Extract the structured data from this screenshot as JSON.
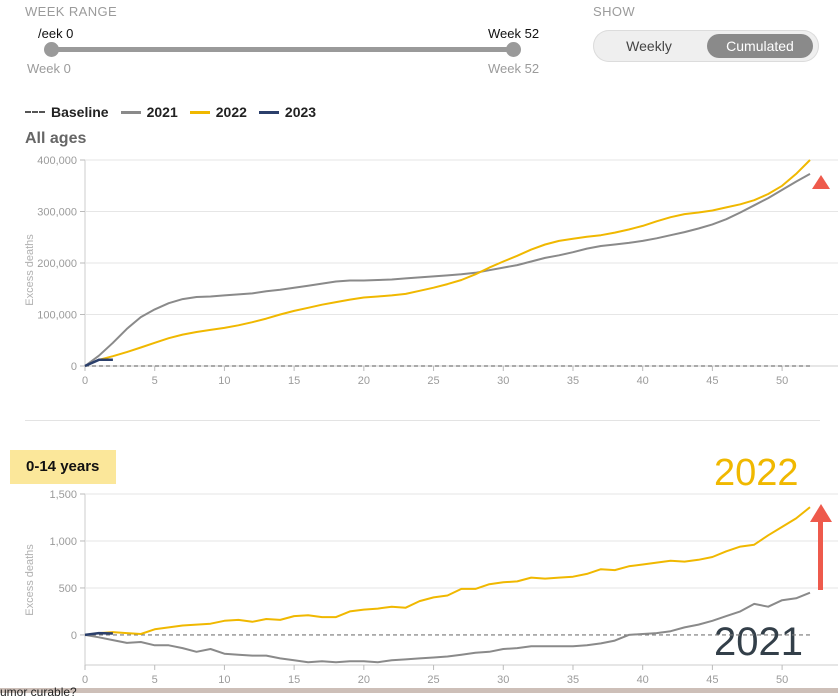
{
  "controls": {
    "week_range_label": "WEEK RANGE",
    "slider_left_value": "/eek 0",
    "slider_right_value": "Week 52",
    "slider_left_sub": "Week 0",
    "slider_right_sub": "Week 52",
    "range": [
      0,
      52
    ],
    "show_label": "SHOW",
    "toggle": {
      "options": [
        "Weekly",
        "Cumulated"
      ],
      "selected": "Cumulated"
    }
  },
  "legend": [
    {
      "name": "Baseline",
      "style": "dashed",
      "color": "#555555"
    },
    {
      "name": "2021",
      "color": "#8a8a8a"
    },
    {
      "name": "2022",
      "color": "#f0b800"
    },
    {
      "name": "2023",
      "color": "#2b3f6b"
    }
  ],
  "annotations": {
    "big_2022": "2022",
    "big_2021": "2021",
    "arrow_color": "#ee5a4c",
    "bottom_text": "umor curable?"
  },
  "chart_data": [
    {
      "type": "line",
      "title": "All ages",
      "ylabel": "Excess deaths",
      "xlim": [
        0,
        52
      ],
      "ylim": [
        0,
        400000
      ],
      "xticks": [
        0,
        5,
        10,
        15,
        20,
        25,
        30,
        35,
        40,
        45,
        50
      ],
      "yticks": [
        0,
        100000,
        200000,
        300000,
        400000
      ],
      "ytick_labels": [
        "0",
        "100,000",
        "200,000",
        "300,000",
        "400,000"
      ],
      "grid": true,
      "baseline": 0,
      "series": [
        {
          "name": "2021",
          "color": "#8a8a8a",
          "x": [
            0,
            1,
            2,
            3,
            4,
            5,
            6,
            7,
            8,
            9,
            10,
            11,
            12,
            13,
            14,
            15,
            16,
            17,
            18,
            19,
            20,
            21,
            22,
            23,
            24,
            25,
            26,
            27,
            28,
            29,
            30,
            31,
            32,
            33,
            34,
            35,
            36,
            37,
            38,
            39,
            40,
            41,
            42,
            43,
            44,
            45,
            46,
            47,
            48,
            49,
            50,
            51,
            52
          ],
          "values": [
            0,
            20000,
            45000,
            72000,
            95000,
            110000,
            122000,
            130000,
            134000,
            135000,
            137000,
            139000,
            141000,
            145000,
            148000,
            152000,
            156000,
            160000,
            164000,
            166000,
            166000,
            167000,
            168000,
            170000,
            172000,
            174000,
            176000,
            178000,
            181000,
            186000,
            191000,
            196000,
            203000,
            210000,
            215000,
            221000,
            228000,
            233000,
            236000,
            239000,
            243000,
            248000,
            254000,
            260000,
            267000,
            275000,
            285000,
            298000,
            312000,
            326000,
            342000,
            358000,
            373000
          ]
        },
        {
          "name": "2022",
          "color": "#f0b800",
          "x": [
            1,
            2,
            3,
            4,
            5,
            6,
            7,
            8,
            9,
            10,
            11,
            12,
            13,
            14,
            15,
            16,
            17,
            18,
            19,
            20,
            21,
            22,
            23,
            24,
            25,
            26,
            27,
            28,
            29,
            30,
            31,
            32,
            33,
            34,
            35,
            36,
            37,
            38,
            39,
            40,
            41,
            42,
            43,
            44,
            45,
            46,
            47,
            48,
            49,
            50,
            51,
            52
          ],
          "values": [
            12000,
            19000,
            27000,
            36000,
            45000,
            54000,
            61000,
            66000,
            70000,
            74000,
            79000,
            85000,
            92000,
            100000,
            107000,
            113000,
            119000,
            124000,
            129000,
            133000,
            135000,
            137000,
            140000,
            146000,
            152000,
            159000,
            167000,
            178000,
            191000,
            203000,
            214000,
            226000,
            236000,
            243000,
            247000,
            251000,
            254000,
            259000,
            265000,
            272000,
            281000,
            289000,
            295000,
            298000,
            302000,
            308000,
            314000,
            322000,
            334000,
            350000,
            373000,
            400000
          ]
        },
        {
          "name": "2023",
          "color": "#2b3f6b",
          "x": [
            0,
            1,
            2
          ],
          "values": [
            0,
            12000,
            12000
          ]
        }
      ]
    },
    {
      "type": "line",
      "title": "0-14 years",
      "ylabel": "Excess deaths",
      "xlim": [
        0,
        52
      ],
      "ylim": [
        -320,
        1500
      ],
      "xticks": [
        0,
        5,
        10,
        15,
        20,
        25,
        30,
        35,
        40,
        45,
        50
      ],
      "yticks": [
        0,
        500,
        1000,
        1500
      ],
      "ytick_labels": [
        "0",
        "500",
        "1,000",
        "1,500"
      ],
      "grid": true,
      "baseline": 0,
      "series": [
        {
          "name": "2021",
          "color": "#8a8a8a",
          "x": [
            0,
            1,
            2,
            3,
            4,
            5,
            6,
            7,
            8,
            9,
            10,
            11,
            12,
            13,
            14,
            15,
            16,
            17,
            18,
            19,
            20,
            21,
            22,
            23,
            24,
            25,
            26,
            27,
            28,
            29,
            30,
            31,
            32,
            33,
            34,
            35,
            36,
            37,
            38,
            39,
            40,
            41,
            42,
            43,
            44,
            45,
            46,
            47,
            48,
            49,
            50,
            51,
            52
          ],
          "values": [
            0,
            -25,
            -55,
            -85,
            -75,
            -110,
            -110,
            -140,
            -180,
            -150,
            -200,
            -210,
            -220,
            -220,
            -250,
            -270,
            -290,
            -280,
            -290,
            -280,
            -280,
            -290,
            -270,
            -260,
            -250,
            -240,
            -230,
            -210,
            -190,
            -180,
            -150,
            -140,
            -120,
            -120,
            -120,
            -120,
            -110,
            -90,
            -60,
            0,
            10,
            20,
            40,
            80,
            110,
            150,
            200,
            250,
            330,
            300,
            370,
            390,
            450
          ]
        },
        {
          "name": "2022",
          "color": "#f0b800",
          "x": [
            1,
            2,
            3,
            4,
            5,
            6,
            7,
            8,
            9,
            10,
            11,
            12,
            13,
            14,
            15,
            16,
            17,
            18,
            19,
            20,
            21,
            22,
            23,
            24,
            25,
            26,
            27,
            28,
            29,
            30,
            31,
            32,
            33,
            34,
            35,
            36,
            37,
            38,
            39,
            40,
            41,
            42,
            43,
            44,
            45,
            46,
            47,
            48,
            49,
            50,
            51,
            52
          ],
          "values": [
            20,
            30,
            20,
            10,
            60,
            80,
            100,
            110,
            120,
            150,
            160,
            140,
            170,
            160,
            200,
            210,
            190,
            190,
            250,
            270,
            280,
            300,
            290,
            360,
            400,
            420,
            490,
            490,
            540,
            560,
            570,
            610,
            600,
            610,
            620,
            650,
            700,
            690,
            730,
            750,
            770,
            790,
            780,
            800,
            830,
            890,
            940,
            960,
            1060,
            1150,
            1240,
            1360
          ]
        },
        {
          "name": "2023",
          "color": "#2b3f6b",
          "x": [
            0,
            1,
            2
          ],
          "values": [
            0,
            20,
            15
          ]
        }
      ]
    }
  ]
}
